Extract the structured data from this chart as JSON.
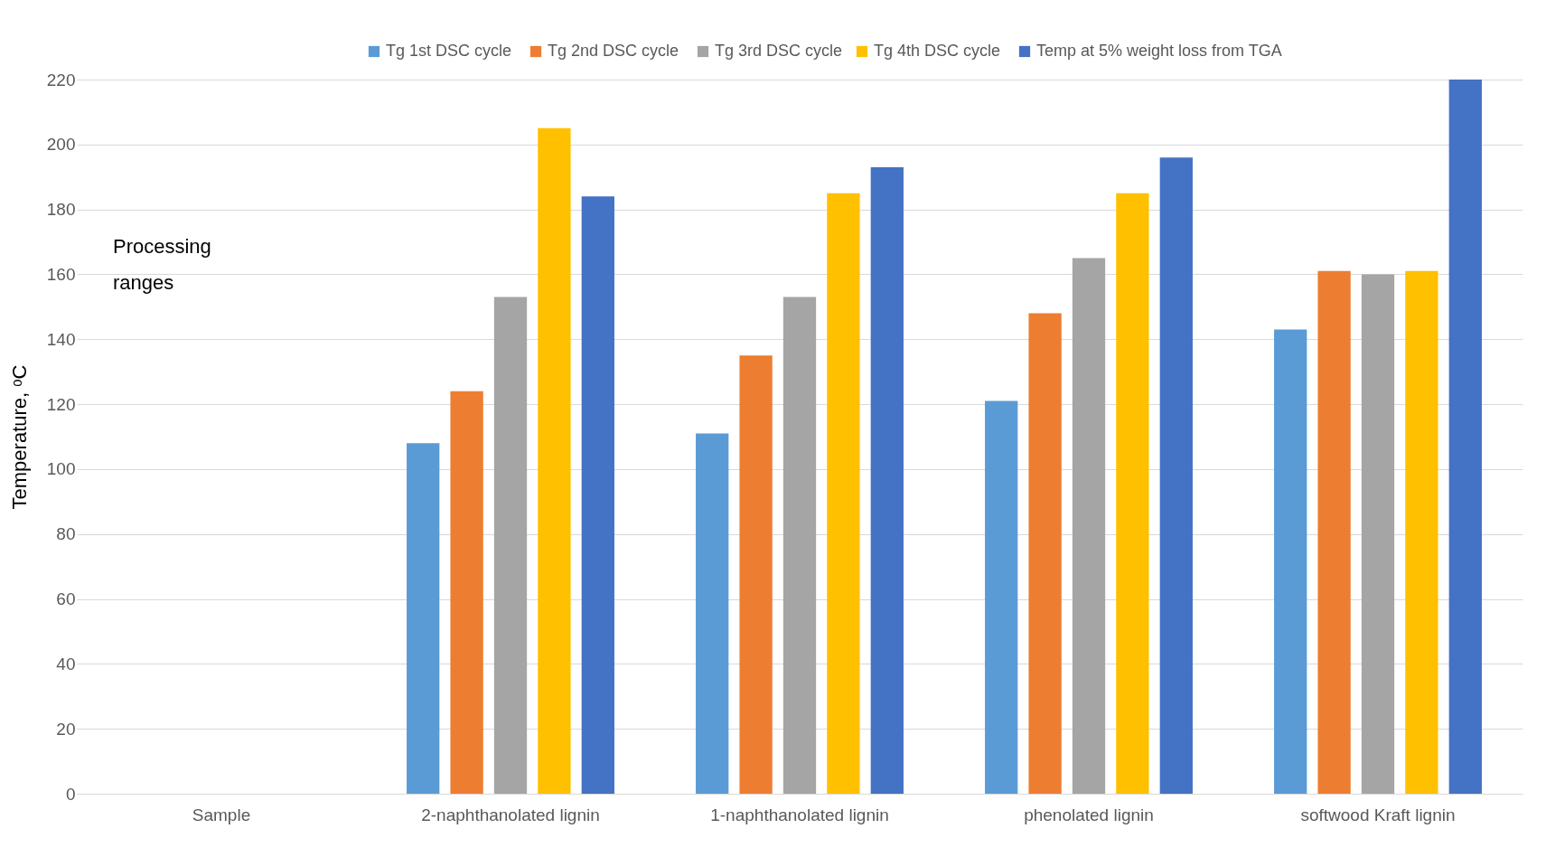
{
  "chart_data": {
    "type": "bar",
    "ylabel": "Temperature, ᵒC",
    "categories": [
      "Sample",
      "2-naphthanolated lignin",
      "1-naphthanolated lignin",
      "phenolated lignin",
      "softwood Kraft lignin"
    ],
    "series": [
      {
        "name": "Tg  1st DSC cycle",
        "color": "#5b9bd5",
        "values": [
          null,
          108,
          111,
          121,
          143
        ]
      },
      {
        "name": "Tg  2nd DSC cycle",
        "color": "#ed7d31",
        "values": [
          null,
          124,
          135,
          148,
          161
        ]
      },
      {
        "name": "Tg 3rd DSC cycle",
        "color": "#a5a5a5",
        "values": [
          null,
          153,
          153,
          165,
          160
        ]
      },
      {
        "name": "Tg  4th DSC cycle",
        "color": "#ffc000",
        "values": [
          null,
          205,
          185,
          185,
          161
        ]
      },
      {
        "name": "Temp at 5% weight loss from TGA",
        "color": "#4472c4",
        "values": [
          null,
          184,
          193,
          196,
          220
        ]
      }
    ],
    "ylim": [
      0,
      220
    ],
    "yticks": [
      0,
      20,
      40,
      60,
      80,
      100,
      120,
      140,
      160,
      180,
      200,
      220
    ],
    "grid": "y",
    "legend": "top right",
    "annotations": [
      "Processing ranges"
    ]
  }
}
